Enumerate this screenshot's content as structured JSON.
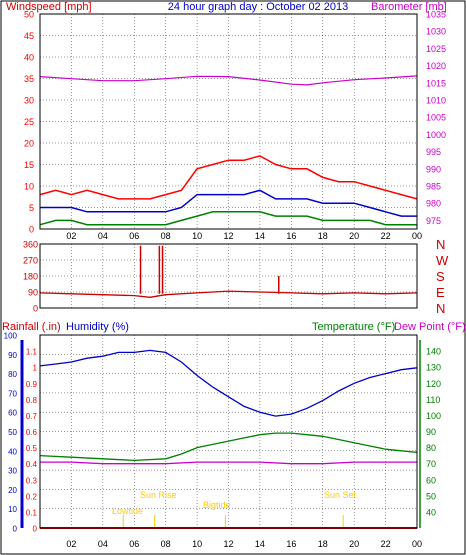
{
  "header": {
    "left_title": "Windspeed [mph]",
    "center_title": "24 hour graph day : October 02 2013",
    "right_title": "Barometer [mb]"
  },
  "compass_labels": [
    "N",
    "W",
    "S",
    "E",
    "N"
  ],
  "lower_header": {
    "rainfall_label": "Rainfall (.in)",
    "humidity_label": "Humidity (%)",
    "temperature_label": "Temperature (°F)",
    "dewpoint_label": "Dew Point (°F)"
  },
  "x_tick_labels": [
    "02",
    "04",
    "06",
    "08",
    "10",
    "12",
    "14",
    "16",
    "18",
    "20",
    "22",
    "00"
  ],
  "event_labels": {
    "lowtide": "Lowtide",
    "sunrise": "Sun Rise",
    "hightide": "Bigtide",
    "sunset": "Sun Set"
  },
  "colors": {
    "wind_color": "#ff0000",
    "avg_wind_color": "#0000cc",
    "gust_color": "#008000",
    "barometer_color": "#cc00cc",
    "direction_color": "#cc0000",
    "humidity_color": "#0000cc",
    "temperature_color": "#008000",
    "dewpoint_color": "#cc00cc",
    "rain_color": "#ff0000",
    "event_color": "#ffcc00",
    "grid_color": "#000000"
  },
  "chart_data": [
    {
      "type": "line",
      "title": "24 hour graph day : October 02 2013",
      "x_range": [
        0,
        24
      ],
      "x_tick_labels": [
        "02",
        "04",
        "06",
        "08",
        "10",
        "12",
        "14",
        "16",
        "18",
        "20",
        "22",
        "00"
      ],
      "left_axis": {
        "label": "Windspeed [mph]",
        "range": [
          0,
          50
        ],
        "ticks": [
          0,
          5,
          10,
          15,
          20,
          25,
          30,
          35,
          40,
          45,
          50
        ]
      },
      "right_axis": {
        "label": "Barometer [mb]",
        "range": [
          972.5,
          1035
        ],
        "ticks": [
          975,
          980,
          985,
          990,
          995,
          1000,
          1005,
          1010,
          1015,
          1020,
          1025,
          1030,
          1035
        ]
      },
      "grid": true,
      "series": [
        {
          "axis": "left",
          "x": [
            0,
            1,
            2,
            3,
            4,
            5,
            6,
            7,
            8,
            9,
            10,
            11,
            12,
            13,
            14,
            15,
            16,
            17,
            18,
            19,
            20,
            21,
            22,
            23,
            24
          ],
          "values": [
            8,
            9,
            8,
            9,
            8,
            7,
            7,
            7,
            8,
            9,
            14,
            15,
            16,
            16,
            17,
            15,
            14,
            14,
            12,
            11,
            11,
            10,
            9,
            8,
            7
          ]
        },
        {
          "axis": "left",
          "x": [
            0,
            1,
            2,
            3,
            4,
            5,
            6,
            7,
            8,
            9,
            10,
            11,
            12,
            13,
            14,
            15,
            16,
            17,
            18,
            19,
            20,
            21,
            22,
            23,
            24
          ],
          "values": [
            5,
            5,
            5,
            4,
            4,
            4,
            4,
            4,
            4,
            5,
            8,
            8,
            8,
            8,
            9,
            7,
            7,
            7,
            6,
            6,
            6,
            5,
            4,
            3,
            3
          ]
        },
        {
          "axis": "left",
          "x": [
            0,
            1,
            2,
            3,
            4,
            5,
            6,
            7,
            8,
            9,
            10,
            11,
            12,
            13,
            14,
            15,
            16,
            17,
            18,
            19,
            20,
            21,
            22,
            23,
            24
          ],
          "values": [
            1,
            2,
            2,
            1,
            1,
            1,
            1,
            1,
            1,
            2,
            3,
            4,
            4,
            4,
            4,
            3,
            3,
            3,
            2,
            2,
            2,
            2,
            1,
            1,
            1
          ]
        },
        {
          "name": "Barometer [mb]",
          "axis": "right",
          "x": [
            0,
            2,
            4,
            6,
            8,
            10,
            12,
            14,
            16,
            17,
            18,
            20,
            22,
            24
          ],
          "values": [
            1016.8,
            1016.2,
            1015.6,
            1015.6,
            1016.2,
            1016.9,
            1016.8,
            1015.8,
            1014.6,
            1014.4,
            1015.0,
            1015.9,
            1016.4,
            1017.0
          ]
        }
      ]
    },
    {
      "type": "line",
      "x_range": [
        0,
        24
      ],
      "y_range": [
        0,
        360
      ],
      "y_ticks": [
        0,
        90,
        180,
        270,
        360
      ],
      "right_labels": [
        "N",
        "W",
        "S",
        "E",
        "N"
      ],
      "grid": true,
      "series": [
        {
          "x": [
            0,
            2,
            4,
            6,
            7,
            8,
            10,
            12,
            14,
            16,
            18,
            20,
            22,
            24
          ],
          "values": [
            85,
            80,
            75,
            70,
            60,
            75,
            85,
            95,
            90,
            85,
            80,
            85,
            80,
            85
          ]
        }
      ],
      "spikes": [
        {
          "x": 6.4,
          "value": 350
        },
        {
          "x": 7.6,
          "value": 350
        },
        {
          "x": 7.8,
          "value": 350
        },
        {
          "x": 15.2,
          "value": 180
        }
      ]
    },
    {
      "type": "line",
      "x_range": [
        0,
        24
      ],
      "left_axis": {
        "label": "Humidity (%)",
        "range": [
          0,
          100
        ],
        "ticks": [
          0,
          10,
          20,
          30,
          40,
          50,
          60,
          70,
          80,
          90,
          100
        ]
      },
      "rain_axis": {
        "label": "Rainfall (.in)",
        "range": [
          0,
          1.2
        ],
        "ticks": [
          0,
          0.1,
          0.2,
          0.3,
          0.4,
          0.5,
          0.6,
          0.7,
          0.8,
          0.9,
          1,
          1.1
        ]
      },
      "right_axis": {
        "label": "Temperature (°F)",
        "range": [
          30,
          150
        ],
        "ticks": [
          40,
          50,
          60,
          70,
          80,
          90,
          100,
          110,
          120,
          130,
          140
        ]
      },
      "grid": true,
      "series": [
        {
          "name": "Humidity (%)",
          "axis": "left",
          "x": [
            0,
            1,
            2,
            3,
            4,
            5,
            6,
            7,
            8,
            9,
            10,
            11,
            12,
            13,
            14,
            15,
            16,
            17,
            18,
            19,
            20,
            21,
            22,
            23,
            24
          ],
          "values": [
            84,
            85,
            86,
            88,
            89,
            91,
            91,
            92,
            91,
            86,
            79,
            73,
            68,
            63,
            60,
            58,
            59,
            62,
            66,
            71,
            75,
            78,
            80,
            82,
            83
          ]
        },
        {
          "name": "Temperature (°F)",
          "axis": "right",
          "x": [
            0,
            2,
            4,
            6,
            8,
            9,
            10,
            11,
            12,
            13,
            14,
            15,
            16,
            17,
            18,
            19,
            20,
            21,
            22,
            23,
            24
          ],
          "values": [
            75,
            74,
            73,
            72,
            73,
            76,
            80,
            82,
            84,
            86,
            88,
            89,
            89,
            88,
            87,
            85,
            83,
            81,
            79,
            78,
            77
          ]
        },
        {
          "name": "Dew Point (°F)",
          "axis": "right",
          "x": [
            0,
            2,
            4,
            6,
            8,
            10,
            12,
            14,
            16,
            18,
            20,
            22,
            24
          ],
          "values": [
            71,
            71,
            70,
            70,
            70,
            71,
            71,
            71,
            70,
            70,
            71,
            71,
            71
          ]
        },
        {
          "name": "Rainfall (.in)",
          "axis": "rain",
          "x": [
            0,
            24
          ],
          "values": [
            0,
            0
          ]
        }
      ],
      "events": [
        {
          "name": "Lowtide",
          "x": 5.3
        },
        {
          "name": "Sun Rise",
          "x": 7.3
        },
        {
          "name": "Bigtide",
          "x": 11.8
        },
        {
          "name": "Sun Set",
          "x": 19.3
        }
      ]
    }
  ]
}
